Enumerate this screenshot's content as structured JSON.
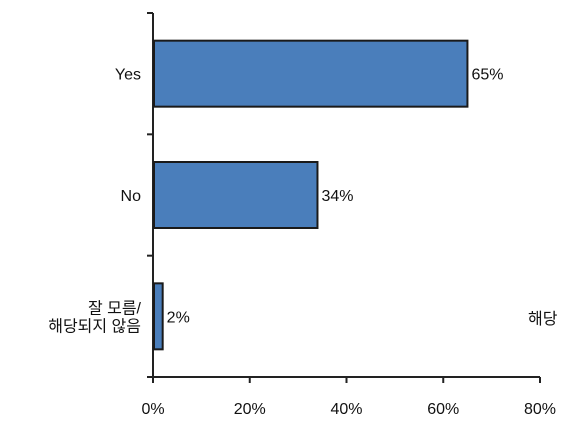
{
  "chart_data": {
    "type": "bar",
    "orientation": "horizontal",
    "categories": [
      "Yes",
      "No",
      "잘 모름/해당되지 않음"
    ],
    "category_lines": [
      [
        "Yes"
      ],
      [
        "No"
      ],
      [
        "잘 모름/",
        "해당되지 않음"
      ]
    ],
    "values": [
      65,
      34,
      2
    ],
    "value_labels": [
      "65%",
      "34%",
      "2%"
    ],
    "xlim": [
      0,
      80
    ],
    "x_ticks": [
      0,
      20,
      40,
      60,
      80
    ],
    "x_tick_labels": [
      "0%",
      "20%",
      "40%",
      "60%",
      "80%"
    ],
    "title": "",
    "xlabel": "",
    "ylabel": "",
    "grid": false,
    "clipped_text": "해당",
    "bar_color": "#4a7ebb",
    "bar_edge_color": "#1a1a1a"
  }
}
